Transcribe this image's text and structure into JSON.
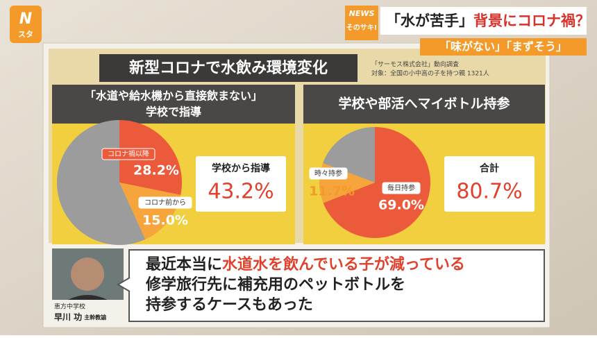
{
  "logo": {
    "mark": "N",
    "text": "スタ"
  },
  "badge": {
    "top": "NEWS",
    "bottom": "そのサキ!"
  },
  "headline": {
    "part1": "「水が苦手」",
    "part2": "背景にコロナ禍？"
  },
  "subheadline": "「味がない」「まずそう」",
  "board": {
    "title": "新型コロナで水飲み環境変化",
    "source": "「サーモス株式会社」動向調査",
    "target": "対象：全国の小中高の子を持つ親 1321人"
  },
  "chart_data": [
    {
      "type": "pie",
      "title": "「水道や給水機から直接飲まない」",
      "subtitle": "学校で指導",
      "categories": [
        "コロナ禍以降",
        "コロナ前から",
        null
      ],
      "values": [
        28.2,
        15.0,
        56.8
      ],
      "value_labels": [
        "28.2%",
        "15.0%",
        null
      ],
      "colors": [
        "#ec5a3c",
        "#f6a53c",
        "#9c9c9c"
      ],
      "total_label": "学校から指導",
      "total": 43.2,
      "total_value_label": "43.2%"
    },
    {
      "type": "pie",
      "title": "学校や部活へマイボトル持参",
      "categories": [
        "毎日持参",
        "時々持参",
        null
      ],
      "values": [
        69.0,
        11.7,
        19.3
      ],
      "value_labels": [
        "69.0%",
        "11.7%",
        null
      ],
      "colors": [
        "#ec5a3c",
        "#f6a53c",
        "#9c9c9c"
      ],
      "total_label": "合計",
      "total": 80.7,
      "total_value_label": "80.7%"
    }
  ],
  "speaker": {
    "school": "恵方中学校",
    "name": "早川 功",
    "role": "主幹教諭"
  },
  "quote": {
    "line1_a": "最近本当に",
    "line1_b": "水道水を飲んでいる子が減っている",
    "line2": "修学旅行先に補充用のペットボトルを",
    "line3": "持参するケースもあった"
  }
}
